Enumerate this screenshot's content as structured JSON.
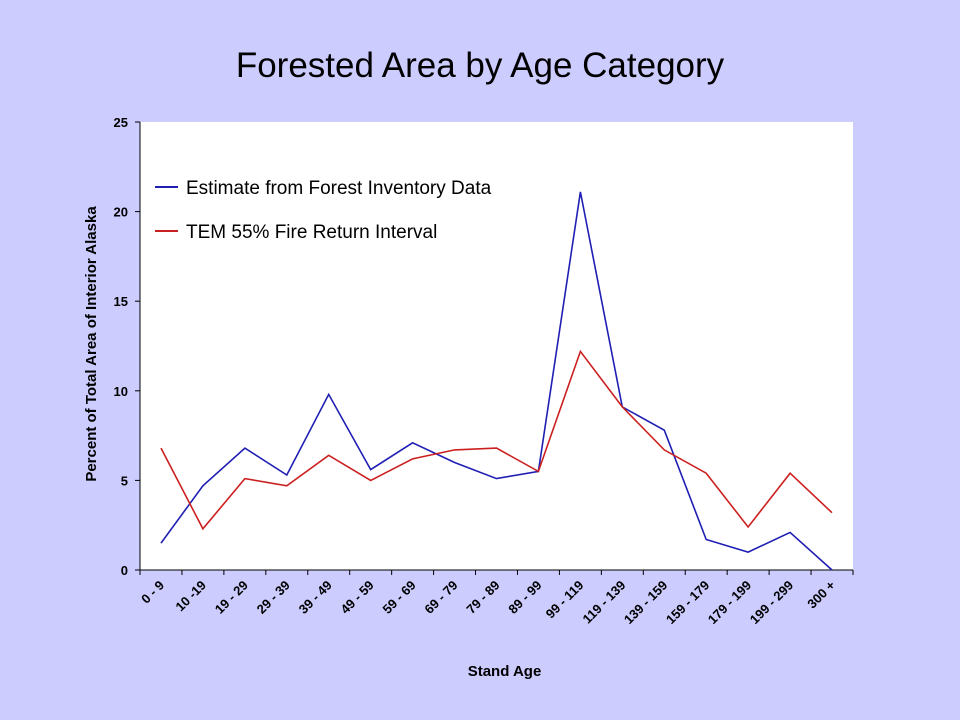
{
  "chart_data": {
    "type": "line",
    "title": "Forested Area by Age Category",
    "xlabel": "Stand Age",
    "ylabel": "Percent of Total Area of Interior Alaska",
    "ylim": [
      0,
      25
    ],
    "yticks": [
      0,
      5,
      10,
      15,
      20,
      25
    ],
    "grid": false,
    "legend_position": "top-left",
    "plot_background": "#FFFFFF",
    "categories": [
      "0 - 9",
      "10 -19",
      "19 - 29",
      "29 - 39",
      "39 - 49",
      "49 - 59",
      "59 - 69",
      "69 - 79",
      "79 - 89",
      "89 - 99",
      "99 - 119",
      "119 - 139",
      "139 - 159",
      "159 - 179",
      "179 - 199",
      "199 - 299",
      "300 +"
    ],
    "series": [
      {
        "name": "Estimate from Forest Inventory Data",
        "color": "#1F1FB4",
        "values": [
          1.5,
          4.7,
          6.8,
          5.3,
          9.8,
          5.6,
          7.1,
          6.0,
          5.1,
          5.5,
          21.1,
          9.1,
          7.8,
          1.7,
          1.0,
          2.1,
          0.0
        ]
      },
      {
        "name": "TEM 55% Fire Return Interval",
        "color": "#CC2020",
        "values": [
          6.8,
          2.3,
          5.1,
          4.7,
          6.4,
          5.0,
          6.2,
          6.7,
          6.8,
          5.5,
          12.2,
          9.1,
          6.7,
          5.4,
          2.4,
          5.4,
          3.2
        ]
      }
    ]
  }
}
